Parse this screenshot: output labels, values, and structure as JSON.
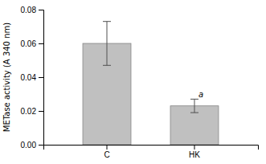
{
  "chart_data": {
    "type": "bar",
    "categories": [
      "C",
      "HK"
    ],
    "values": [
      0.06,
      0.023
    ],
    "errors": [
      0.013,
      0.004
    ],
    "color": "#c0c0c0",
    "ylabel": "METase activity (A 340 nm)",
    "ylim": [
      0.0,
      0.08
    ],
    "yticks": [
      {
        "value": 0.0,
        "label": "0.00"
      },
      0.02,
      0.04,
      0.06,
      0.08
    ],
    "annotations": [
      {
        "text": "a",
        "category": "HK"
      }
    ],
    "grid": false
  }
}
